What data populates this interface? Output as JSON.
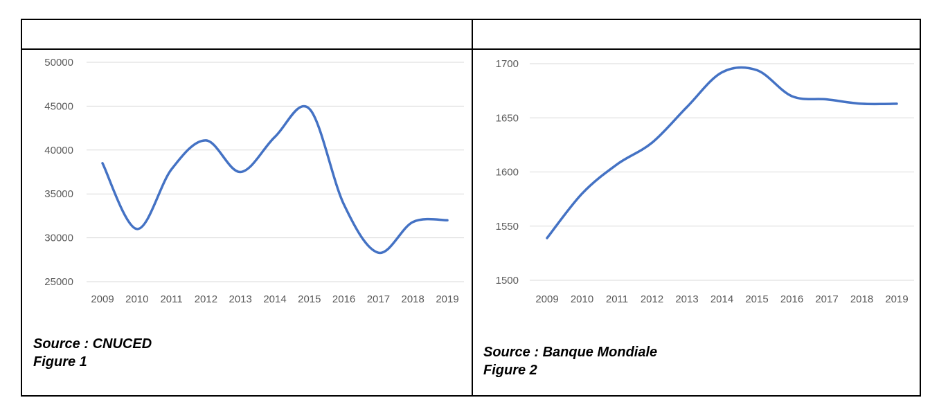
{
  "chart_data": [
    {
      "type": "line",
      "categories": [
        "2009",
        "2010",
        "2011",
        "2012",
        "2013",
        "2014",
        "2015",
        "2016",
        "2017",
        "2018",
        "2019"
      ],
      "values": [
        38500,
        31000,
        37800,
        41100,
        37500,
        41500,
        44700,
        33800,
        28300,
        31800,
        32000
      ],
      "ylim": [
        25000,
        50000
      ],
      "yticks": [
        "25000",
        "30000",
        "35000",
        "40000",
        "45000",
        "50000"
      ],
      "grid": true,
      "color": "#4472c4",
      "source": "Source : CNUCED",
      "figure": "Figure 1"
    },
    {
      "type": "line",
      "categories": [
        "2009",
        "2010",
        "2011",
        "2012",
        "2013",
        "2014",
        "2015",
        "2016",
        "2017",
        "2018",
        "2019"
      ],
      "values": [
        1539,
        1580,
        1607,
        1627,
        1660,
        1692,
        1694,
        1670,
        1667,
        1663,
        1663
      ],
      "ylim": [
        1500,
        1700
      ],
      "yticks": [
        "1500",
        "1550",
        "1600",
        "1650",
        "1700"
      ],
      "grid": true,
      "color": "#4472c4",
      "source": "Source : Banque Mondiale",
      "figure": "Figure 2"
    }
  ]
}
